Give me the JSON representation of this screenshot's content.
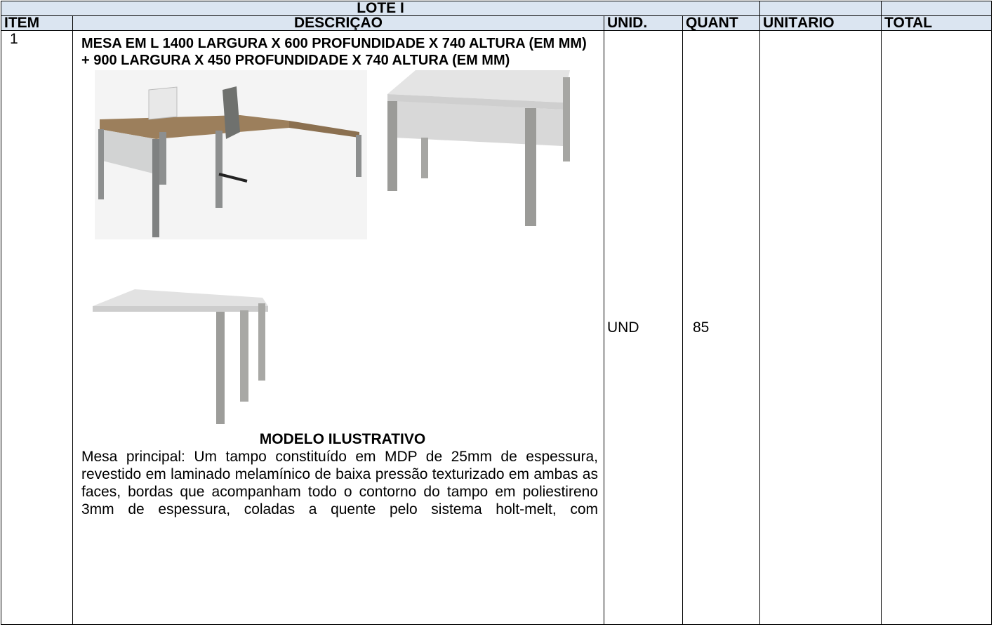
{
  "table": {
    "group_header": "LOTE I",
    "columns": [
      "ITEM",
      "DESCRIÇÃO",
      "UNID.",
      "QUANT",
      "UNITÁRIO",
      "TOTAL"
    ],
    "rows": [
      {
        "item": "1",
        "title": "MESA EM L 1400 LARGURA X 600 PROFUNDIDADE X 740 ALTURA (EM MM) + 900 LARGURA X 450 PROFUNDIDADE X 740 ALTURA (EM MM)",
        "caption": "MODELO ILUSTRATIVO",
        "description": "Mesa principal: Um tampo constituído em MDP de 25mm de espessura, revestido em laminado melamínico de baixa pressão texturizado em ambas as faces, bordas que acompanham todo o contorno do tampo em poliestireno 3mm de espessura, coladas a quente pelo sistema holt-melt, com",
        "unit": "UND",
        "quantity": "85"
      }
    ]
  }
}
